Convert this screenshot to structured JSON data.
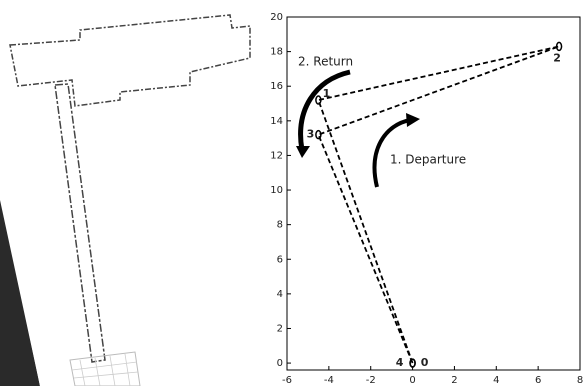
{
  "chart_data": {
    "type": "line",
    "x": [
      0,
      -4.5,
      7,
      -4.5,
      0
    ],
    "series": [
      {
        "values": [
          0,
          15.2,
          18.3,
          13.2,
          0
        ],
        "color": "#000000",
        "dashed": true,
        "marker": "circle"
      }
    ],
    "point_labels": [
      "0",
      "1",
      "2",
      "3",
      "4"
    ],
    "annotations": [
      "2. Return",
      "1. Departure"
    ],
    "xlim": [
      -6,
      8
    ],
    "xticks": [
      -6,
      -4,
      -2,
      0,
      2,
      4,
      6,
      8
    ],
    "ylim": [
      -0.4,
      20
    ],
    "yticks": [
      0,
      2,
      4,
      6,
      8,
      10,
      12,
      14,
      16,
      18,
      20
    ],
    "grid": false
  }
}
